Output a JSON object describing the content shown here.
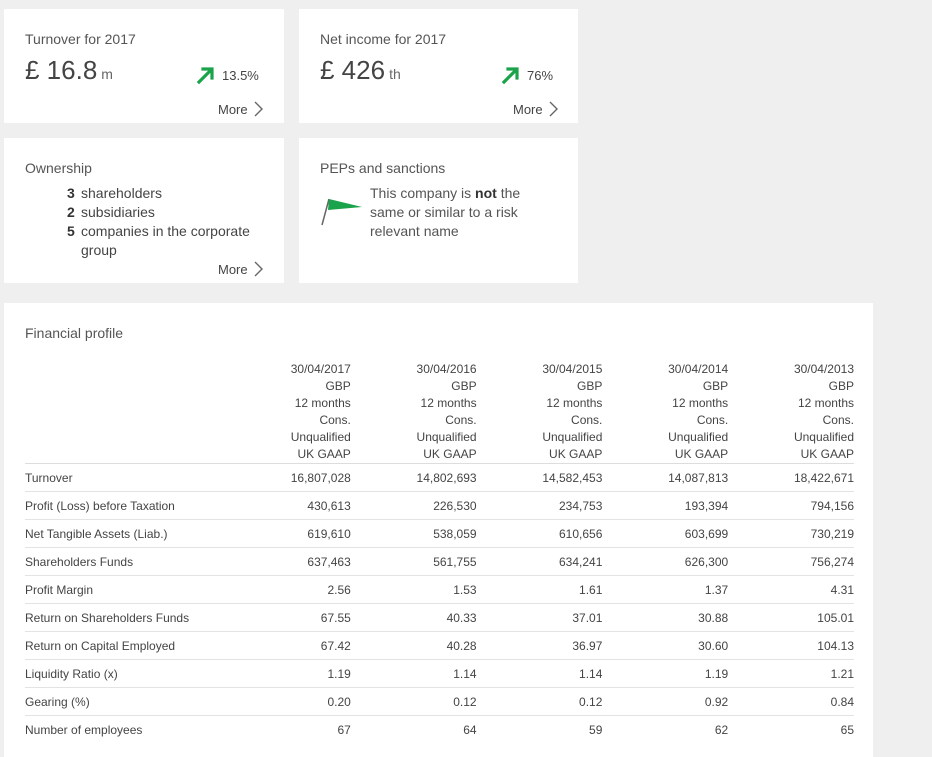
{
  "turnover_card": {
    "title": "Turnover for 2017",
    "value": "£ 16.8",
    "unit": "m",
    "change": "13.5%",
    "more_label": "More"
  },
  "net_income_card": {
    "title": "Net income for 2017",
    "value": "£ 426",
    "unit": "th",
    "change": "76%",
    "more_label": "More"
  },
  "ownership_card": {
    "title": "Ownership",
    "items": [
      {
        "count": "3",
        "label": "shareholders"
      },
      {
        "count": "2",
        "label": "subsidiaries"
      },
      {
        "count": "5",
        "label": "companies in the corporate group"
      }
    ],
    "more_label": "More"
  },
  "peps_card": {
    "title": "PEPs and sanctions",
    "text_before": "This company is ",
    "text_bold": "not",
    "text_after": " the same or similar to a risk relevant name"
  },
  "financial_profile": {
    "title": "Financial profile",
    "columns": [
      {
        "date": "30/04/2017",
        "currency": "GBP",
        "period": "12 months",
        "type": "Cons.",
        "audit": "Unqualified",
        "standard": "UK GAAP"
      },
      {
        "date": "30/04/2016",
        "currency": "GBP",
        "period": "12 months",
        "type": "Cons.",
        "audit": "Unqualified",
        "standard": "UK GAAP"
      },
      {
        "date": "30/04/2015",
        "currency": "GBP",
        "period": "12 months",
        "type": "Cons.",
        "audit": "Unqualified",
        "standard": "UK GAAP"
      },
      {
        "date": "30/04/2014",
        "currency": "GBP",
        "period": "12 months",
        "type": "Cons.",
        "audit": "Unqualified",
        "standard": "UK GAAP"
      },
      {
        "date": "30/04/2013",
        "currency": "GBP",
        "period": "12 months",
        "type": "Cons.",
        "audit": "Unqualified",
        "standard": "UK GAAP"
      }
    ],
    "rows": [
      {
        "label": "Turnover",
        "values": [
          "16,807,028",
          "14,802,693",
          "14,582,453",
          "14,087,813",
          "18,422,671"
        ]
      },
      {
        "label": "Profit (Loss) before Taxation",
        "values": [
          "430,613",
          "226,530",
          "234,753",
          "193,394",
          "794,156"
        ]
      },
      {
        "label": "Net Tangible Assets (Liab.)",
        "values": [
          "619,610",
          "538,059",
          "610,656",
          "603,699",
          "730,219"
        ]
      },
      {
        "label": "Shareholders Funds",
        "values": [
          "637,463",
          "561,755",
          "634,241",
          "626,300",
          "756,274"
        ]
      },
      {
        "label": "Profit Margin",
        "values": [
          "2.56",
          "1.53",
          "1.61",
          "1.37",
          "4.31"
        ]
      },
      {
        "label": "Return on Shareholders Funds",
        "values": [
          "67.55",
          "40.33",
          "37.01",
          "30.88",
          "105.01"
        ]
      },
      {
        "label": "Return on Capital Employed",
        "values": [
          "67.42",
          "40.28",
          "36.97",
          "30.60",
          "104.13"
        ]
      },
      {
        "label": "Liquidity Ratio (x)",
        "values": [
          "1.19",
          "1.14",
          "1.14",
          "1.19",
          "1.21"
        ]
      },
      {
        "label": "Gearing (%)",
        "values": [
          "0.20",
          "0.12",
          "0.12",
          "0.92",
          "0.84"
        ]
      },
      {
        "label": "Number of employees",
        "values": [
          "67",
          "64",
          "59",
          "62",
          "65"
        ]
      }
    ]
  },
  "colors": {
    "accent_green": "#1aa34a",
    "card_bg": "#ffffff",
    "page_bg": "#efefef"
  }
}
